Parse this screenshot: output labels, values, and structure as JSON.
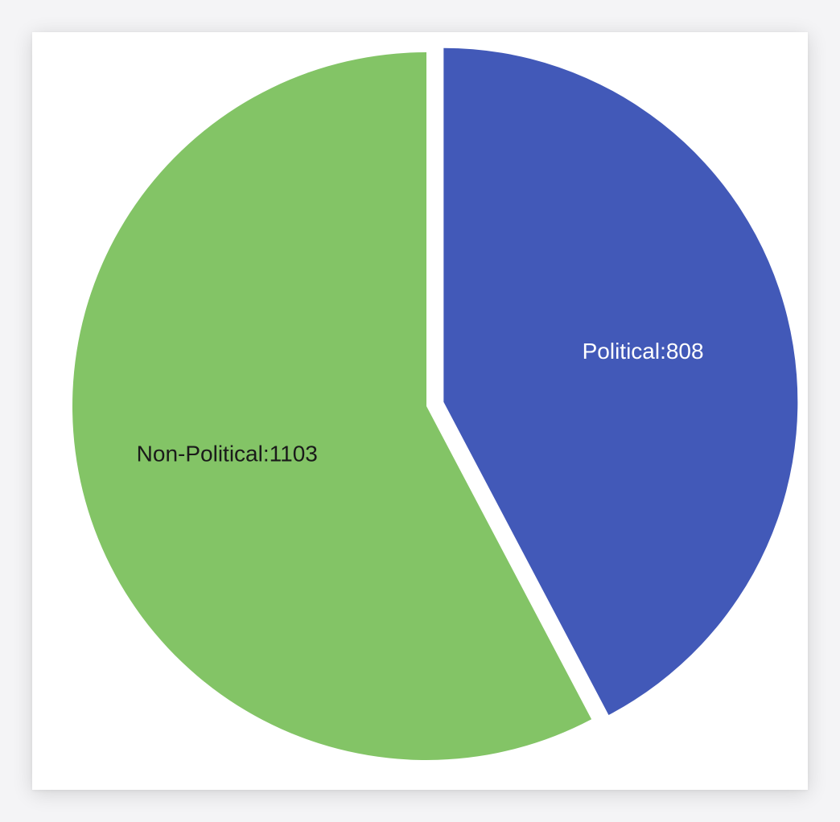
{
  "chart_data": {
    "type": "pie",
    "slices": [
      {
        "label": "Political",
        "value": 808,
        "display": "Political:808",
        "color": "#4259b8",
        "text_color": "#ffffff",
        "exploded": true
      },
      {
        "label": "Non-Political",
        "value": 1103,
        "display": "Non-Political:1103",
        "color": "#83c466",
        "text_color": "#1a1a1a",
        "exploded": false
      }
    ],
    "start_angle": "12 o'clock",
    "direction": "clockwise",
    "legend": "none",
    "background": "#ffffff"
  }
}
